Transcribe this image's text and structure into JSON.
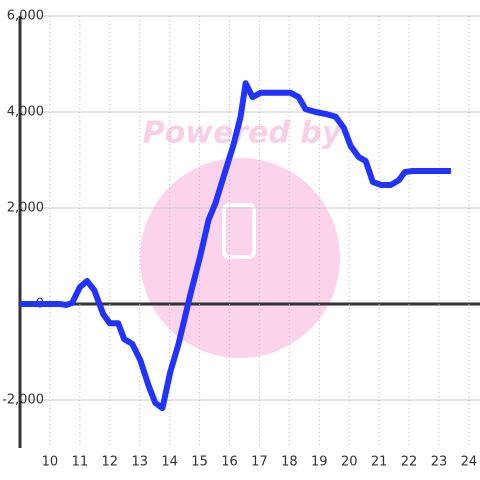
{
  "chart_data": {
    "type": "line",
    "watermark": "Powered by",
    "x": [
      9.0,
      10.34,
      10.54,
      10.74,
      11.0,
      11.24,
      11.48,
      11.78,
      12.0,
      12.28,
      12.48,
      12.75,
      13.02,
      13.29,
      13.52,
      13.76,
      14.02,
      14.29,
      14.69,
      15.03,
      15.3,
      15.53,
      15.87,
      16.13,
      16.37,
      16.54,
      16.77,
      17.04,
      18.04,
      18.31,
      18.54,
      18.88,
      19.21,
      19.55,
      19.82,
      20.05,
      20.32,
      20.55,
      20.79,
      21.06,
      21.39,
      21.66,
      21.86,
      22.13,
      23.4
    ],
    "series": [
      {
        "color": "#2233ff",
        "values": [
          0,
          0,
          -20,
          20,
          350,
          480,
          290,
          -210,
          -400,
          -400,
          -730,
          -830,
          -1170,
          -1690,
          -2060,
          -2170,
          -1420,
          -850,
          190,
          1020,
          1750,
          2100,
          2790,
          3310,
          3900,
          4600,
          4310,
          4400,
          4400,
          4310,
          4060,
          4000,
          3960,
          3900,
          3670,
          3290,
          3060,
          2980,
          2540,
          2480,
          2480,
          2580,
          2750,
          2770,
          2770
        ]
      }
    ],
    "xlim": [
      9,
      24.37
    ],
    "xticks": [
      10,
      11,
      12,
      13,
      14,
      15,
      16,
      17,
      18,
      19,
      20,
      21,
      22,
      23,
      24
    ],
    "ylim": [
      -3000,
      6000
    ],
    "yticks": [
      {
        "value": -2000,
        "label": "-2,000"
      },
      0,
      {
        "value": 2000,
        "label": "2,000"
      },
      {
        "value": 4000,
        "label": "4,000"
      },
      {
        "value": 6000,
        "label": "6,000"
      }
    ],
    "grid": true
  }
}
